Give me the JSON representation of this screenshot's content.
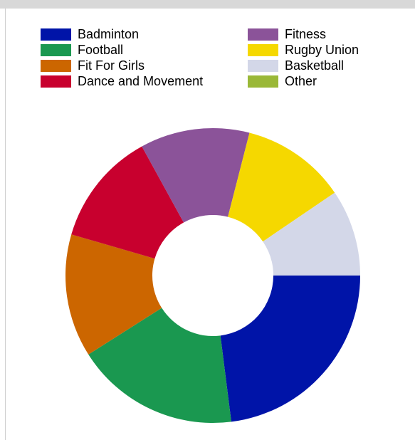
{
  "chart_data": {
    "type": "pie",
    "donut": true,
    "title": "",
    "legend_position": "top",
    "categories": [
      "Badminton",
      "Fitness",
      "Football",
      "Rugby Union",
      "Fit For Girls",
      "Basketball",
      "Dance and Movement",
      "Other"
    ],
    "slices": [
      {
        "name": "Badminton",
        "value": 23.0,
        "color": "#0014a8"
      },
      {
        "name": "Football",
        "value": 18.0,
        "color": "#1a9850"
      },
      {
        "name": "Fit For Girls",
        "value": 13.5,
        "color": "#cc6600"
      },
      {
        "name": "Dance and Movement",
        "value": 12.5,
        "color": "#c8002e"
      },
      {
        "name": "Fitness",
        "value": 12.0,
        "color": "#8b5399"
      },
      {
        "name": "Rugby Union",
        "value": 11.5,
        "color": "#f5d800"
      },
      {
        "name": "Basketball",
        "value": 9.5,
        "color": "#d3d7e8"
      },
      {
        "name": "Other",
        "value": 0,
        "color": "#9ab838"
      }
    ],
    "legend": [
      {
        "name": "Badminton",
        "color": "#0014a8"
      },
      {
        "name": "Fitness",
        "color": "#8b5399"
      },
      {
        "name": "Football",
        "color": "#1a9850"
      },
      {
        "name": "Rugby Union",
        "color": "#f5d800"
      },
      {
        "name": "Fit For Girls",
        "color": "#cc6600"
      },
      {
        "name": "Basketball",
        "color": "#d3d7e8"
      },
      {
        "name": "Dance and Movement",
        "color": "#c8002e"
      },
      {
        "name": "Other",
        "color": "#9ab838"
      }
    ]
  }
}
